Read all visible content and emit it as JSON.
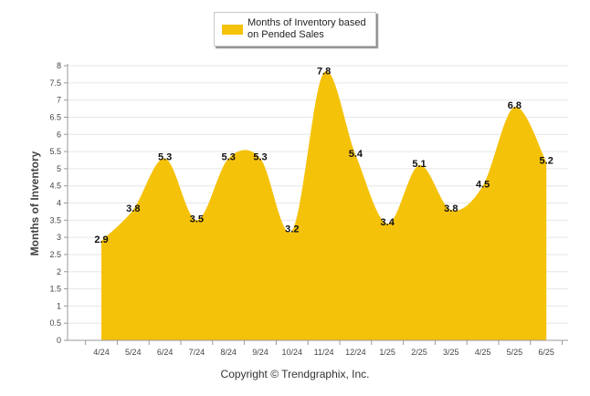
{
  "legend": {
    "label": "Months of Inventory based on Pended Sales",
    "color": "#f5c20a"
  },
  "copyright": "Copyright © Trendgraphix, Inc.",
  "chart_data": {
    "type": "area",
    "categories": [
      "4/24",
      "5/24",
      "6/24",
      "7/24",
      "8/24",
      "9/24",
      "10/24",
      "11/24",
      "12/24",
      "1/25",
      "2/25",
      "3/25",
      "4/25",
      "5/25",
      "6/25"
    ],
    "series": [
      {
        "name": "Months of Inventory based on Pended Sales",
        "values": [
          2.9,
          3.8,
          5.3,
          3.5,
          5.3,
          5.3,
          3.2,
          7.8,
          5.4,
          3.4,
          5.1,
          3.8,
          4.5,
          6.8,
          5.2
        ]
      }
    ],
    "data_labels": [
      "2.9",
      "3.8",
      "5.3",
      "3.5",
      "5.3",
      "5.3",
      "3.2",
      "7.8",
      "5.4",
      "3.4",
      "5.1",
      "3.8",
      "4.5",
      "6.8",
      "5.2"
    ],
    "ylabel": "Months of Inventory",
    "xlabel": "",
    "ylim": [
      0,
      8
    ],
    "yticks": [
      "0",
      "0.5",
      "1",
      "1.5",
      "2",
      "2.5",
      "3",
      "3.5",
      "4",
      "4.5",
      "5",
      "5.5",
      "6",
      "6.5",
      "7",
      "7.5",
      "8"
    ],
    "grid": true,
    "legend_position": "top-center",
    "fill_color": "#f5c20a"
  }
}
